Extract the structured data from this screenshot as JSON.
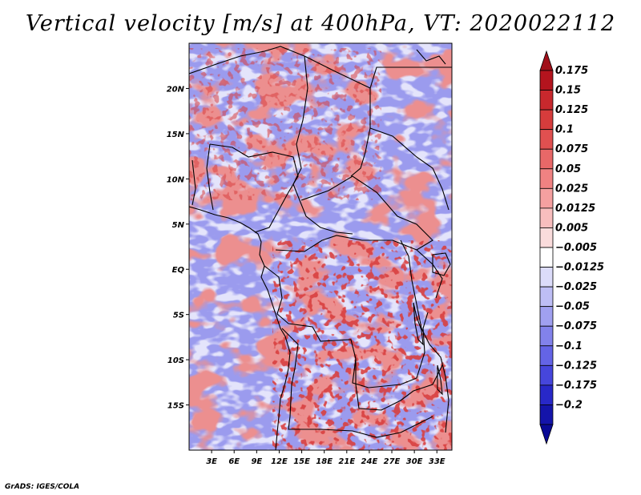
{
  "chart_data": {
    "type": "heatmap",
    "title": "Vertical velocity [m/s] at 400hPa, VT: 2020022112",
    "variable": "Vertical velocity",
    "units": "m/s",
    "level": "400hPa",
    "valid_time": "2020022112",
    "xlim": [
      0,
      35
    ],
    "ylim": [
      -20,
      25
    ],
    "x_ticks": [
      {
        "value": 3,
        "label": "3E"
      },
      {
        "value": 6,
        "label": "6E"
      },
      {
        "value": 9,
        "label": "9E"
      },
      {
        "value": 12,
        "label": "12E"
      },
      {
        "value": 15,
        "label": "15E"
      },
      {
        "value": 18,
        "label": "18E"
      },
      {
        "value": 21,
        "label": "21E"
      },
      {
        "value": 24,
        "label": "24E"
      },
      {
        "value": 27,
        "label": "27E"
      },
      {
        "value": 30,
        "label": "30E"
      },
      {
        "value": 33,
        "label": "33E"
      }
    ],
    "y_ticks": [
      {
        "value": 20,
        "label": "20N"
      },
      {
        "value": 15,
        "label": "15N"
      },
      {
        "value": 10,
        "label": "10N"
      },
      {
        "value": 5,
        "label": "5N"
      },
      {
        "value": 0,
        "label": "EQ"
      },
      {
        "value": -5,
        "label": "5S"
      },
      {
        "value": -10,
        "label": "10S"
      },
      {
        "value": -15,
        "label": "15S"
      }
    ],
    "colorbar": {
      "levels": [
        {
          "label": "0.175",
          "color": "#b4141e"
        },
        {
          "label": "0.15",
          "color": "#c8282d"
        },
        {
          "label": "0.125",
          "color": "#d63c3c"
        },
        {
          "label": "0.1",
          "color": "#e05050"
        },
        {
          "label": "0.075",
          "color": "#e86868"
        },
        {
          "label": "0.05",
          "color": "#f08282"
        },
        {
          "label": "0.025",
          "color": "#f5a0a0"
        },
        {
          "label": "0.0125",
          "color": "#f8bebe"
        },
        {
          "label": "0.005",
          "color": "#fadcdc"
        },
        {
          "label": "−0.005",
          "color": "#ffffff"
        },
        {
          "label": "−0.0125",
          "color": "#dcdcfa"
        },
        {
          "label": "−0.025",
          "color": "#bebef5"
        },
        {
          "label": "−0.05",
          "color": "#a0a0f0"
        },
        {
          "label": "−0.075",
          "color": "#8282eb"
        },
        {
          "label": "−0.1",
          "color": "#6464e6"
        },
        {
          "label": "−0.125",
          "color": "#4646dc"
        },
        {
          "label": "−0.175",
          "color": "#2828c8"
        },
        {
          "label": "−0.2",
          "color": "#1414aa"
        }
      ],
      "top_arrow_color": "#a00f19",
      "bottom_arrow_color": "#0a0a96"
    }
  },
  "credit": "GrADS: IGES/COLA"
}
